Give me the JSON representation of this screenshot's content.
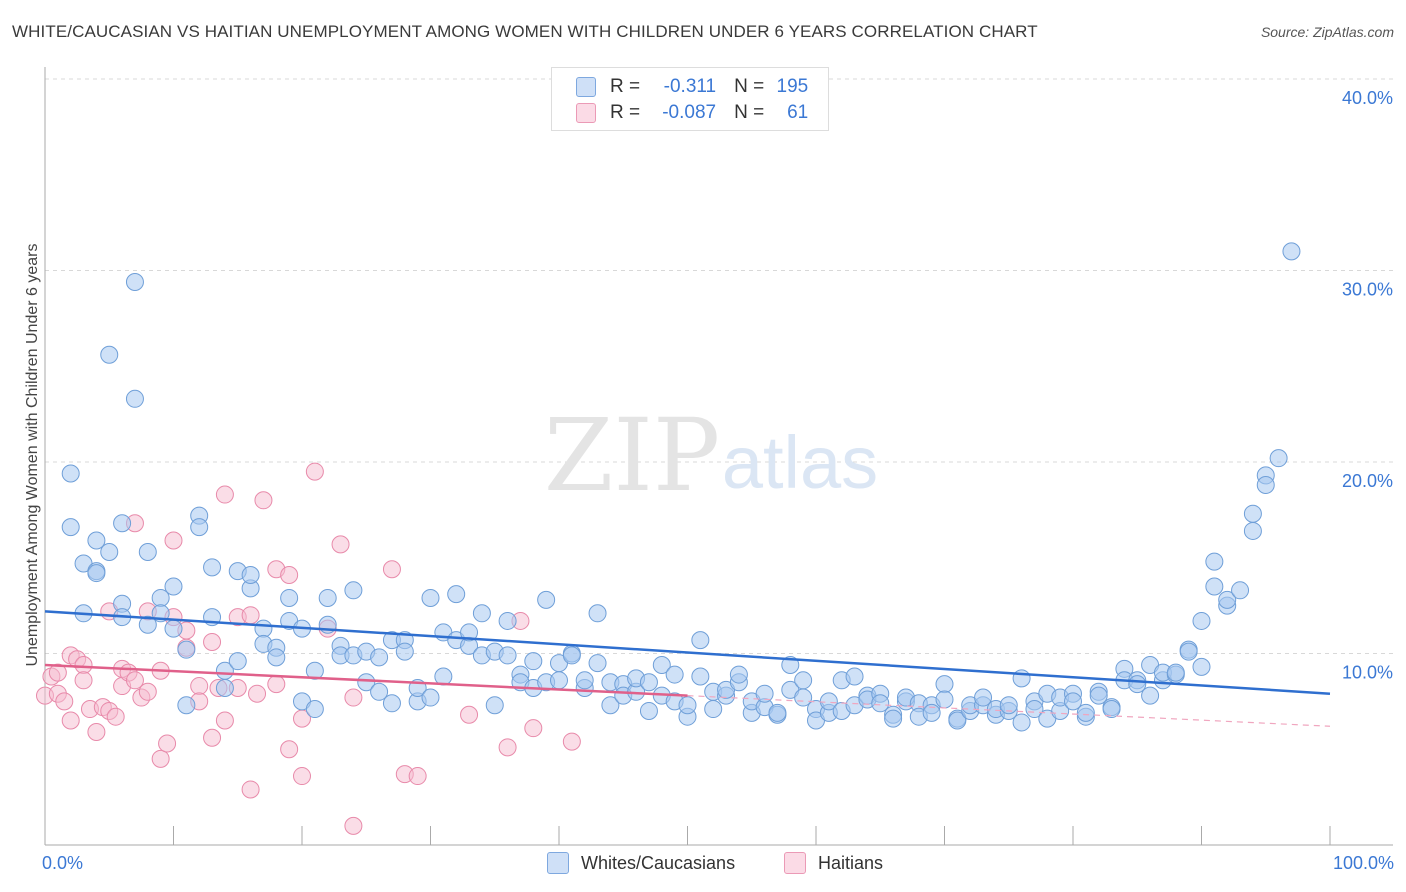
{
  "header": {
    "title": "WHITE/CAUCASIAN VS HAITIAN UNEMPLOYMENT AMONG WOMEN WITH CHILDREN UNDER 6 YEARS CORRELATION CHART",
    "source": "Source: ZipAtlas.com"
  },
  "watermark": {
    "zip": "ZIP",
    "atlas": "atlas"
  },
  "legend_top": {
    "rows": [
      {
        "r_label": "R =",
        "r_value": "-0.311",
        "n_label": "N =",
        "n_value": "195",
        "color": "#a8c8f0"
      },
      {
        "r_label": "R =",
        "r_value": "-0.087",
        "n_label": "N =",
        "n_value": "61",
        "color": "#f5bcd0"
      }
    ]
  },
  "legend_bottom": {
    "items": [
      {
        "label": "Whites/Caucasians",
        "color": "#a8c8f0"
      },
      {
        "label": "Haitians",
        "color": "#f5bcd0"
      }
    ]
  },
  "colors": {
    "blue_fill": "#a8c8f0",
    "blue_stroke": "#6f9fd8",
    "blue_line": "#2f6fcf",
    "pink_fill": "#f5bcd0",
    "pink_stroke": "#e88aaa",
    "pink_line": "#e0608a",
    "axis_label": "#3b78d4",
    "grid": "#d8d8d8"
  },
  "chart_data": {
    "type": "scatter",
    "title": "WHITE/CAUCASIAN VS HAITIAN UNEMPLOYMENT AMONG WOMEN WITH CHILDREN UNDER 6 YEARS CORRELATION CHART",
    "xlabel": "",
    "ylabel": "Unemployment Among Women with Children Under 6 years",
    "xlim": [
      0,
      100
    ],
    "ylim": [
      0,
      40
    ],
    "x_tick_labels": [
      "0.0%",
      "100.0%"
    ],
    "y_ticks": [
      10,
      20,
      30,
      40
    ],
    "y_tick_labels": [
      "10.0%",
      "20.0%",
      "30.0%",
      "40.0%"
    ],
    "grid": true,
    "legend_position": "top-center",
    "series": [
      {
        "name": "Whites/Caucasians",
        "r": -0.311,
        "n": 195,
        "trend": {
          "x": [
            0,
            100
          ],
          "y": [
            12.2,
            7.9
          ]
        },
        "points": [
          [
            2,
            16.6
          ],
          [
            2,
            19.4
          ],
          [
            3,
            12.1
          ],
          [
            3,
            14.7
          ],
          [
            4,
            14.3
          ],
          [
            4,
            15.9
          ],
          [
            4,
            14.2
          ],
          [
            5,
            25.6
          ],
          [
            5,
            15.3
          ],
          [
            6,
            16.8
          ],
          [
            6,
            12.6
          ],
          [
            6,
            11.9
          ],
          [
            7,
            23.3
          ],
          [
            7,
            29.4
          ],
          [
            8,
            11.5
          ],
          [
            8,
            15.3
          ],
          [
            9,
            12.9
          ],
          [
            9,
            12.1
          ],
          [
            10,
            11.3
          ],
          [
            10,
            13.5
          ],
          [
            11,
            10.2
          ],
          [
            11,
            7.3
          ],
          [
            12,
            17.2
          ],
          [
            12,
            16.6
          ],
          [
            13,
            14.5
          ],
          [
            13,
            11.9
          ],
          [
            14,
            9.1
          ],
          [
            14,
            8.2
          ],
          [
            15,
            14.3
          ],
          [
            15,
            9.6
          ],
          [
            16,
            13.4
          ],
          [
            16,
            14.1
          ],
          [
            17,
            11.3
          ],
          [
            17,
            10.5
          ],
          [
            18,
            10.3
          ],
          [
            18,
            9.8
          ],
          [
            19,
            12.9
          ],
          [
            19,
            11.7
          ],
          [
            20,
            11.3
          ],
          [
            20,
            7.5
          ],
          [
            21,
            9.1
          ],
          [
            21,
            7.1
          ],
          [
            22,
            12.9
          ],
          [
            22,
            11.5
          ],
          [
            23,
            10.4
          ],
          [
            23,
            9.9
          ],
          [
            24,
            13.3
          ],
          [
            24,
            9.9
          ],
          [
            25,
            8.5
          ],
          [
            25,
            10.1
          ],
          [
            26,
            9.8
          ],
          [
            26,
            8.0
          ],
          [
            27,
            10.7
          ],
          [
            27,
            7.4
          ],
          [
            28,
            10.7
          ],
          [
            28,
            10.1
          ],
          [
            29,
            7.5
          ],
          [
            29,
            8.2
          ],
          [
            30,
            12.9
          ],
          [
            30,
            7.7
          ],
          [
            31,
            8.8
          ],
          [
            31,
            11.1
          ],
          [
            32,
            13.1
          ],
          [
            32,
            10.7
          ],
          [
            33,
            10.4
          ],
          [
            33,
            11.1
          ],
          [
            34,
            12.1
          ],
          [
            34,
            9.9
          ],
          [
            35,
            10.1
          ],
          [
            35,
            7.3
          ],
          [
            36,
            11.7
          ],
          [
            36,
            9.9
          ],
          [
            37,
            8.9
          ],
          [
            37,
            8.5
          ],
          [
            38,
            8.2
          ],
          [
            38,
            9.6
          ],
          [
            39,
            8.5
          ],
          [
            39,
            12.8
          ],
          [
            40,
            9.5
          ],
          [
            40,
            8.6
          ],
          [
            41,
            10.0
          ],
          [
            41,
            9.9
          ],
          [
            42,
            8.2
          ],
          [
            42,
            8.6
          ],
          [
            43,
            9.5
          ],
          [
            43,
            12.1
          ],
          [
            44,
            7.3
          ],
          [
            44,
            8.5
          ],
          [
            45,
            8.4
          ],
          [
            45,
            7.8
          ],
          [
            46,
            8.0
          ],
          [
            46,
            8.7
          ],
          [
            47,
            7.0
          ],
          [
            47,
            8.5
          ],
          [
            48,
            9.4
          ],
          [
            48,
            7.8
          ],
          [
            49,
            8.9
          ],
          [
            49,
            7.5
          ],
          [
            50,
            6.7
          ],
          [
            50,
            7.3
          ],
          [
            51,
            8.8
          ],
          [
            51,
            10.7
          ],
          [
            52,
            8.0
          ],
          [
            52,
            7.1
          ],
          [
            53,
            7.8
          ],
          [
            53,
            8.1
          ],
          [
            54,
            8.5
          ],
          [
            54,
            8.9
          ],
          [
            55,
            6.9
          ],
          [
            55,
            7.5
          ],
          [
            56,
            7.2
          ],
          [
            56,
            7.9
          ],
          [
            57,
            6.8
          ],
          [
            57,
            6.9
          ],
          [
            58,
            8.1
          ],
          [
            58,
            9.4
          ],
          [
            59,
            7.7
          ],
          [
            59,
            8.6
          ],
          [
            60,
            7.1
          ],
          [
            60,
            6.5
          ],
          [
            61,
            6.9
          ],
          [
            61,
            7.5
          ],
          [
            62,
            8.6
          ],
          [
            62,
            7.0
          ],
          [
            63,
            7.3
          ],
          [
            63,
            8.8
          ],
          [
            64,
            7.8
          ],
          [
            64,
            7.6
          ],
          [
            65,
            7.9
          ],
          [
            65,
            7.4
          ],
          [
            66,
            6.8
          ],
          [
            66,
            6.6
          ],
          [
            67,
            7.5
          ],
          [
            67,
            7.7
          ],
          [
            68,
            7.4
          ],
          [
            68,
            6.7
          ],
          [
            69,
            7.3
          ],
          [
            69,
            6.9
          ],
          [
            70,
            8.4
          ],
          [
            70,
            7.6
          ],
          [
            71,
            6.6
          ],
          [
            71,
            6.5
          ],
          [
            72,
            7.0
          ],
          [
            72,
            7.3
          ],
          [
            73,
            7.3
          ],
          [
            73,
            7.7
          ],
          [
            74,
            6.8
          ],
          [
            74,
            7.1
          ],
          [
            75,
            7.0
          ],
          [
            75,
            7.3
          ],
          [
            76,
            6.4
          ],
          [
            76,
            8.7
          ],
          [
            77,
            7.5
          ],
          [
            77,
            7.1
          ],
          [
            78,
            7.9
          ],
          [
            78,
            6.6
          ],
          [
            79,
            7.0
          ],
          [
            79,
            7.7
          ],
          [
            80,
            7.9
          ],
          [
            80,
            7.5
          ],
          [
            81,
            6.7
          ],
          [
            81,
            6.9
          ],
          [
            82,
            8.0
          ],
          [
            82,
            7.8
          ],
          [
            83,
            7.2
          ],
          [
            83,
            7.1
          ],
          [
            84,
            9.2
          ],
          [
            84,
            8.6
          ],
          [
            85,
            8.6
          ],
          [
            85,
            8.4
          ],
          [
            86,
            9.4
          ],
          [
            86,
            7.8
          ],
          [
            87,
            8.6
          ],
          [
            87,
            9.0
          ],
          [
            88,
            8.9
          ],
          [
            88,
            9.0
          ],
          [
            89,
            10.2
          ],
          [
            89,
            10.1
          ],
          [
            90,
            9.3
          ],
          [
            90,
            11.7
          ],
          [
            91,
            13.5
          ],
          [
            91,
            14.8
          ],
          [
            92,
            12.5
          ],
          [
            92,
            12.8
          ],
          [
            93,
            13.3
          ],
          [
            94,
            16.4
          ],
          [
            94,
            17.3
          ],
          [
            95,
            19.3
          ],
          [
            95,
            18.8
          ],
          [
            96,
            20.2
          ],
          [
            97,
            31.0
          ]
        ]
      },
      {
        "name": "Haitians",
        "r": -0.087,
        "n": 61,
        "trend": {
          "x": [
            0,
            50
          ],
          "y": [
            9.4,
            7.8
          ]
        },
        "dashed_extension": {
          "x": [
            50,
            100
          ],
          "y": [
            7.8,
            6.2
          ]
        },
        "points": [
          [
            0,
            7.8
          ],
          [
            0.5,
            8.8
          ],
          [
            1,
            7.9
          ],
          [
            1,
            9.0
          ],
          [
            1.5,
            7.5
          ],
          [
            2,
            9.9
          ],
          [
            2,
            6.5
          ],
          [
            2.5,
            9.7
          ],
          [
            3,
            9.4
          ],
          [
            3,
            8.6
          ],
          [
            3.5,
            7.1
          ],
          [
            4,
            5.9
          ],
          [
            4.5,
            7.2
          ],
          [
            5,
            7.0
          ],
          [
            5,
            12.2
          ],
          [
            5.5,
            6.7
          ],
          [
            6,
            8.3
          ],
          [
            6,
            9.2
          ],
          [
            6.5,
            9.0
          ],
          [
            7,
            16.8
          ],
          [
            7,
            8.6
          ],
          [
            7.5,
            7.7
          ],
          [
            8,
            12.2
          ],
          [
            8,
            8.0
          ],
          [
            9,
            4.5
          ],
          [
            9,
            9.1
          ],
          [
            9.5,
            5.3
          ],
          [
            10,
            15.9
          ],
          [
            10,
            11.9
          ],
          [
            11,
            11.2
          ],
          [
            11,
            10.3
          ],
          [
            12,
            8.3
          ],
          [
            12,
            7.5
          ],
          [
            13,
            10.6
          ],
          [
            13,
            5.6
          ],
          [
            13.5,
            8.2
          ],
          [
            14,
            18.3
          ],
          [
            14,
            6.5
          ],
          [
            15,
            11.9
          ],
          [
            15,
            8.2
          ],
          [
            16,
            2.9
          ],
          [
            16,
            12.0
          ],
          [
            16.5,
            7.9
          ],
          [
            17,
            18.0
          ],
          [
            18,
            14.4
          ],
          [
            18,
            8.4
          ],
          [
            19,
            14.1
          ],
          [
            19,
            5.0
          ],
          [
            20,
            6.6
          ],
          [
            20,
            3.6
          ],
          [
            21,
            19.5
          ],
          [
            22,
            11.3
          ],
          [
            23,
            15.7
          ],
          [
            24,
            7.7
          ],
          [
            24,
            1.0
          ],
          [
            27,
            14.4
          ],
          [
            28,
            3.7
          ],
          [
            29,
            3.6
          ],
          [
            33,
            6.8
          ],
          [
            36,
            5.1
          ],
          [
            37,
            11.7
          ],
          [
            38,
            6.1
          ],
          [
            41,
            5.4
          ]
        ]
      }
    ]
  }
}
